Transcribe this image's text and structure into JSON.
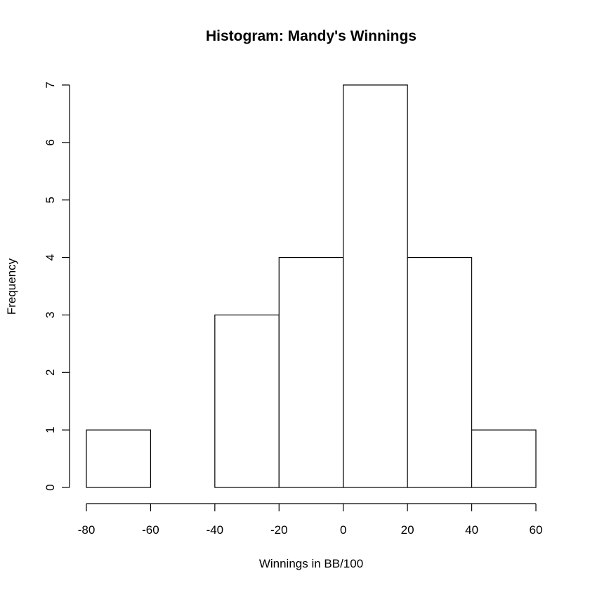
{
  "chart_data": {
    "type": "bar",
    "title": "Histogram: Mandy's Winnings",
    "xlabel": "Winnings in BB/100",
    "ylabel": "Frequency",
    "bins": [
      {
        "from": -80,
        "to": -60,
        "count": 1
      },
      {
        "from": -60,
        "to": -40,
        "count": 0
      },
      {
        "from": -40,
        "to": -20,
        "count": 3
      },
      {
        "from": -20,
        "to": 0,
        "count": 4
      },
      {
        "from": 0,
        "to": 20,
        "count": 7
      },
      {
        "from": 20,
        "to": 40,
        "count": 4
      },
      {
        "from": 40,
        "to": 60,
        "count": 1
      }
    ],
    "xlim": [
      -80,
      60
    ],
    "ylim": [
      0,
      7
    ],
    "xticks": [
      -80,
      -60,
      -40,
      -20,
      0,
      20,
      40,
      60
    ],
    "yticks": [
      0,
      1,
      2,
      3,
      4,
      5,
      6,
      7
    ],
    "grid": false,
    "bar_fill": "#ffffff",
    "bar_stroke": "#000000"
  }
}
